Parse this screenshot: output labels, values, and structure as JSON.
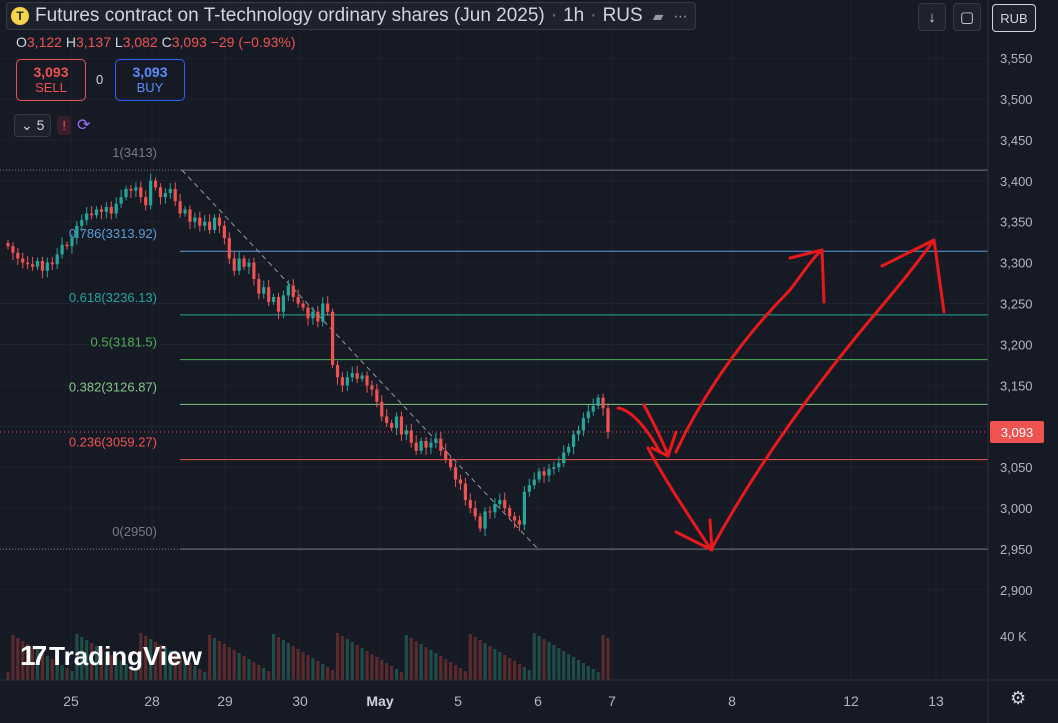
{
  "header": {
    "logo_letter": "T",
    "title": "Futures contract on T-technology ordinary shares (Jun 2025)",
    "interval": "1h",
    "exchange": "RUS",
    "flag_icon": "flag-icon",
    "more_icon": "more-icon"
  },
  "ohlc": {
    "o_label": "O",
    "o": "3,122",
    "h_label": "H",
    "h": "3,137",
    "l_label": "L",
    "l": "3,082",
    "c_label": "C",
    "c": "3,093",
    "change": "−29 (−0.93%)"
  },
  "trade": {
    "sell_price": "3,093",
    "sell_label": "SELL",
    "spread": "0",
    "buy_price": "3,093",
    "buy_label": "BUY"
  },
  "indicators": {
    "count": "5",
    "warning": "!"
  },
  "toolbar": {
    "download_icon": "↓",
    "fullscreen_icon": "▢",
    "currency": "RUB"
  },
  "branding": {
    "name": "TradingView"
  },
  "colors": {
    "up": "#26a69a",
    "down": "#ef5350",
    "bg": "#161a25",
    "annotation": "#e8191b"
  },
  "chart_data": {
    "type": "candlestick",
    "price_axis": {
      "ticks": [
        2900,
        2950,
        3000,
        3050,
        3100,
        3150,
        3200,
        3250,
        3300,
        3350,
        3400,
        3450,
        3500,
        3550
      ],
      "labels": [
        "2,900",
        "2,950",
        "3,000",
        "3,050",
        "3,100",
        "3,150",
        "3,200",
        "3,250",
        "3,300",
        "3,350",
        "3,400",
        "3,450",
        "3,500",
        "3,550"
      ],
      "ylim": [
        2880,
        3580
      ]
    },
    "time_axis": {
      "labels": [
        "25",
        "28",
        "29",
        "30",
        "May",
        "5",
        "6",
        "7",
        "8",
        "12",
        "13"
      ]
    },
    "current_price": {
      "value": 3093,
      "label": "3,093"
    },
    "volume_axis_label": "40 K",
    "fibonacci": [
      {
        "level": "1",
        "value": 3413,
        "label": "1(3413)",
        "color": "#787b86"
      },
      {
        "level": "0.786",
        "value": 3313.92,
        "label": "0.786(3313.92)",
        "color": "#5b9bd5"
      },
      {
        "level": "0.618",
        "value": 3236.13,
        "label": "0.618(3236.13)",
        "color": "#26a69a"
      },
      {
        "level": "0.5",
        "value": 3181.5,
        "label": "0.5(3181.5)",
        "color": "#4caf50"
      },
      {
        "level": "0.382",
        "value": 3126.87,
        "label": "0.382(3126.87)",
        "color": "#81c784"
      },
      {
        "level": "0.236",
        "value": 3059.27,
        "label": "0.236(3059.27)",
        "color": "#ef5350"
      },
      {
        "level": "0",
        "value": 2950,
        "label": "0(2950)",
        "color": "#787b86"
      }
    ],
    "close_series": [
      3320,
      3312,
      3305,
      3300,
      3298,
      3295,
      3302,
      3290,
      3300,
      3298,
      3310,
      3322,
      3320,
      3330,
      3345,
      3352,
      3360,
      3358,
      3365,
      3362,
      3368,
      3360,
      3372,
      3380,
      3390,
      3388,
      3392,
      3380,
      3370,
      3400,
      3392,
      3380,
      3385,
      3390,
      3375,
      3360,
      3365,
      3350,
      3355,
      3345,
      3350,
      3340,
      3355,
      3345,
      3330,
      3305,
      3290,
      3305,
      3295,
      3300,
      3280,
      3262,
      3270,
      3252,
      3258,
      3240,
      3260,
      3272,
      3258,
      3250,
      3245,
      3232,
      3240,
      3228,
      3250,
      3240,
      3175,
      3160,
      3150,
      3160,
      3165,
      3158,
      3162,
      3150,
      3145,
      3130,
      3112,
      3104,
      3098,
      3112,
      3090,
      3095,
      3080,
      3070,
      3082,
      3074,
      3080,
      3085,
      3070,
      3060,
      3050,
      3035,
      3030,
      3010,
      3000,
      2990,
      2975,
      2996,
      2995,
      3005,
      3010,
      3000,
      2990,
      2985,
      2980,
      3020,
      3028,
      3035,
      3045,
      3040,
      3048,
      3050,
      3055,
      3068,
      3075,
      3090,
      3095,
      3110,
      3118,
      3125,
      3135,
      3122,
      3093
    ]
  }
}
